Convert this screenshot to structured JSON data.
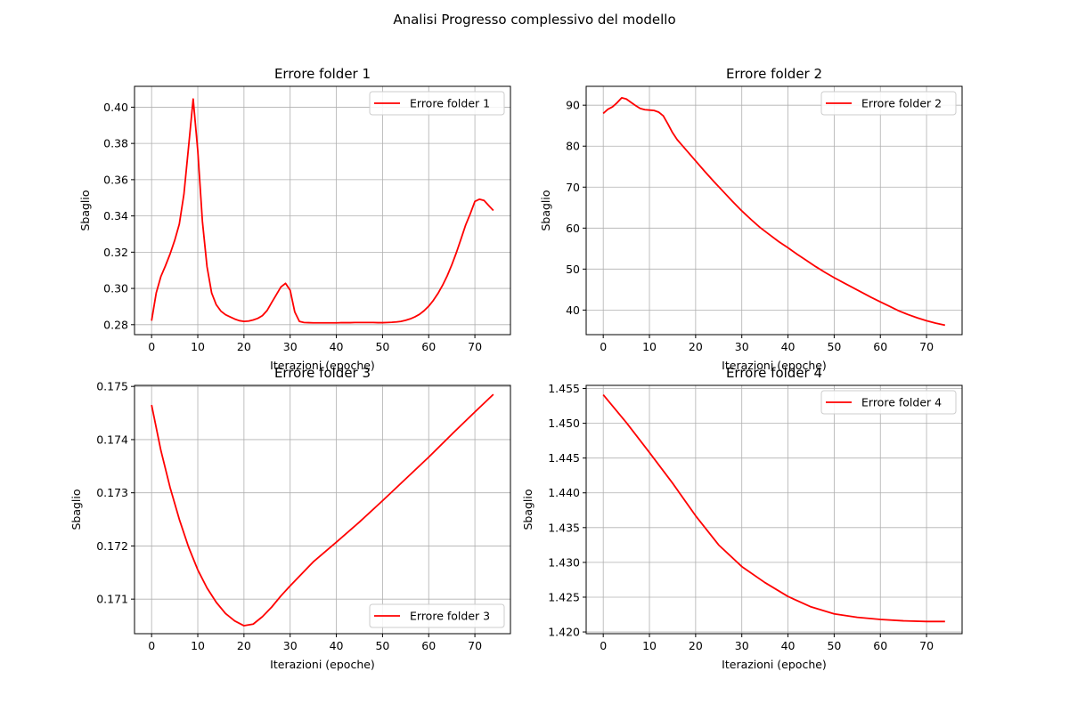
{
  "figure": {
    "suptitle": "Analisi Progresso complessivo del modello"
  },
  "colors": {
    "line": "#ff0000",
    "grid": "#b0b0b0",
    "axis": "#000000",
    "background": "#ffffff",
    "legend_border": "#cccccc"
  },
  "chart_data": [
    {
      "type": "line",
      "title": "Errore folder 1",
      "xlabel": "Iterazioni (epoche)",
      "ylabel": "Sbaglio",
      "xlim": [
        -3.7,
        77.7
      ],
      "ylim": [
        0.2745,
        0.4115
      ],
      "xticks": [
        0,
        10,
        20,
        30,
        40,
        50,
        60,
        70
      ],
      "xtick_labels": [
        "0",
        "10",
        "20",
        "30",
        "40",
        "50",
        "60",
        "70"
      ],
      "yticks": [
        0.28,
        0.3,
        0.32,
        0.34,
        0.36,
        0.38,
        0.4
      ],
      "ytick_labels": [
        "0.28",
        "0.30",
        "0.32",
        "0.34",
        "0.36",
        "0.38",
        "0.40"
      ],
      "grid": true,
      "legend_position": "upper right",
      "series": [
        {
          "name": "Errore folder 1",
          "x": [
            0,
            1,
            2,
            3,
            4,
            5,
            6,
            7,
            8,
            9,
            10,
            11,
            12,
            13,
            14,
            15,
            16,
            17,
            18,
            19,
            20,
            21,
            22,
            23,
            24,
            25,
            26,
            27,
            28,
            29,
            30,
            31,
            32,
            33,
            34,
            35,
            36,
            37,
            38,
            39,
            40,
            41,
            42,
            43,
            44,
            45,
            46,
            47,
            48,
            49,
            50,
            51,
            52,
            53,
            54,
            55,
            56,
            57,
            58,
            59,
            60,
            61,
            62,
            63,
            64,
            65,
            66,
            67,
            68,
            69,
            70,
            71,
            72,
            73,
            74
          ],
          "y": [
            0.2822,
            0.2975,
            0.3065,
            0.3125,
            0.319,
            0.3265,
            0.3355,
            0.352,
            0.378,
            0.4045,
            0.376,
            0.337,
            0.312,
            0.2975,
            0.291,
            0.2875,
            0.2855,
            0.2843,
            0.2831,
            0.2822,
            0.2818,
            0.282,
            0.2826,
            0.2835,
            0.285,
            0.2878,
            0.2922,
            0.2965,
            0.3008,
            0.3028,
            0.299,
            0.287,
            0.2818,
            0.2812,
            0.2811,
            0.281,
            0.281,
            0.281,
            0.281,
            0.281,
            0.281,
            0.2811,
            0.2811,
            0.2811,
            0.2812,
            0.2812,
            0.2812,
            0.2812,
            0.2812,
            0.2811,
            0.2811,
            0.2812,
            0.2813,
            0.2815,
            0.2818,
            0.2824,
            0.2832,
            0.2843,
            0.2857,
            0.2877,
            0.2902,
            0.2934,
            0.2972,
            0.3017,
            0.3069,
            0.313,
            0.3198,
            0.3273,
            0.335,
            0.3412,
            0.348,
            0.3492,
            0.3485,
            0.3457,
            0.343
          ]
        }
      ]
    },
    {
      "type": "line",
      "title": "Errore folder 2",
      "xlabel": "Iterazioni (epoche)",
      "ylabel": "Sbaglio",
      "xlim": [
        -3.7,
        77.7
      ],
      "ylim": [
        34.0,
        94.6
      ],
      "xticks": [
        0,
        10,
        20,
        30,
        40,
        50,
        60,
        70
      ],
      "xtick_labels": [
        "0",
        "10",
        "20",
        "30",
        "40",
        "50",
        "60",
        "70"
      ],
      "yticks": [
        40,
        50,
        60,
        70,
        80,
        90
      ],
      "ytick_labels": [
        "40",
        "50",
        "60",
        "70",
        "80",
        "90"
      ],
      "grid": true,
      "legend_position": "upper right",
      "series": [
        {
          "name": "Errore folder 2",
          "x": [
            0,
            1,
            2,
            3,
            4,
            5,
            6,
            7,
            8,
            9,
            10,
            11,
            12,
            13,
            14,
            15,
            16,
            18,
            20,
            22,
            24,
            26,
            28,
            30,
            32,
            34,
            36,
            38,
            40,
            42,
            44,
            46,
            48,
            50,
            52,
            54,
            56,
            58,
            60,
            62,
            64,
            66,
            68,
            70,
            72,
            74
          ],
          "y": [
            88.0,
            89.0,
            89.6,
            90.6,
            91.8,
            91.5,
            90.7,
            89.9,
            89.2,
            88.9,
            88.8,
            88.7,
            88.3,
            87.4,
            85.4,
            83.3,
            81.6,
            79.0,
            76.4,
            73.8,
            71.3,
            68.9,
            66.5,
            64.2,
            62.1,
            60.1,
            58.4,
            56.7,
            55.2,
            53.6,
            52.1,
            50.6,
            49.2,
            47.9,
            46.7,
            45.5,
            44.3,
            43.1,
            42.0,
            40.9,
            39.8,
            38.9,
            38.1,
            37.4,
            36.8,
            36.3
          ]
        }
      ]
    },
    {
      "type": "line",
      "title": "Errore folder 3",
      "xlabel": "Iterazioni (epoche)",
      "ylabel": "Sbaglio",
      "xlim": [
        -3.7,
        77.7
      ],
      "ylim": [
        0.17035,
        0.17502
      ],
      "xticks": [
        0,
        10,
        20,
        30,
        40,
        50,
        60,
        70
      ],
      "xtick_labels": [
        "0",
        "10",
        "20",
        "30",
        "40",
        "50",
        "60",
        "70"
      ],
      "yticks": [
        0.171,
        0.172,
        0.173,
        0.174,
        0.175
      ],
      "ytick_labels": [
        "0.171",
        "0.172",
        "0.173",
        "0.174",
        "0.175"
      ],
      "grid": true,
      "legend_position": "lower right",
      "series": [
        {
          "name": "Errore folder 3",
          "x": [
            0,
            2,
            4,
            6,
            8,
            10,
            12,
            14,
            16,
            18,
            20,
            22,
            24,
            26,
            28,
            30,
            35,
            40,
            45,
            50,
            55,
            60,
            65,
            70,
            74
          ],
          "y": [
            0.17465,
            0.1738,
            0.1731,
            0.1725,
            0.17198,
            0.17155,
            0.17121,
            0.17094,
            0.17073,
            0.17059,
            0.1705,
            0.17053,
            0.17067,
            0.17085,
            0.17106,
            0.17125,
            0.1717,
            0.17207,
            0.17245,
            0.17285,
            0.17326,
            0.17367,
            0.1741,
            0.17452,
            0.17485
          ]
        }
      ]
    },
    {
      "type": "line",
      "title": "Errore folder 4",
      "xlabel": "Iterazioni (epoche)",
      "ylabel": "Sbaglio",
      "xlim": [
        -3.7,
        77.7
      ],
      "ylim": [
        1.41975,
        1.45545
      ],
      "xticks": [
        0,
        10,
        20,
        30,
        40,
        50,
        60,
        70
      ],
      "xtick_labels": [
        "0",
        "10",
        "20",
        "30",
        "40",
        "50",
        "60",
        "70"
      ],
      "yticks": [
        1.42,
        1.425,
        1.43,
        1.435,
        1.44,
        1.445,
        1.45,
        1.455
      ],
      "ytick_labels": [
        "1.420",
        "1.425",
        "1.430",
        "1.435",
        "1.440",
        "1.445",
        "1.450",
        "1.455"
      ],
      "grid": true,
      "legend_position": "upper right",
      "series": [
        {
          "name": "Errore folder 4",
          "x": [
            0,
            5,
            10,
            15,
            20,
            25,
            30,
            35,
            40,
            45,
            50,
            55,
            60,
            65,
            70,
            74
          ],
          "y": [
            1.4541,
            1.4501,
            1.4458,
            1.4414,
            1.4367,
            1.4325,
            1.4294,
            1.4271,
            1.4251,
            1.4236,
            1.4226,
            1.4221,
            1.4218,
            1.4216,
            1.4215,
            1.4215
          ]
        }
      ]
    }
  ]
}
